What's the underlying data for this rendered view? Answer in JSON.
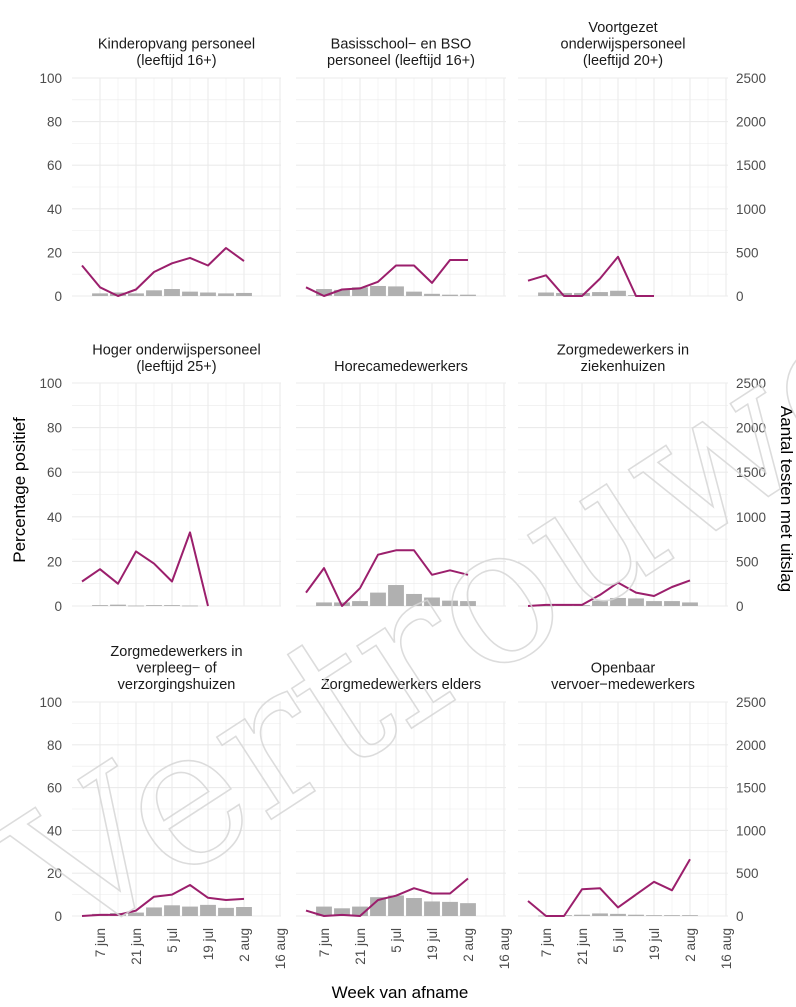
{
  "watermark": "Vertrouwelijk",
  "colors": {
    "line": "#9b1f6c",
    "bar": "#b0b0b0",
    "grid": "#ebebeb",
    "tick": "#4d4d4d"
  },
  "chart_data": {
    "type": "bar+line",
    "layout": "facet grid 3x3, shared axes",
    "xlabel": "Week van afname",
    "ylabel_left": "Percentage positief",
    "ylabel_right": "Aantal testen met uitslag",
    "x_ticks": [
      "7 jun",
      "21 jun",
      "5 jul",
      "19 jul",
      "2 aug",
      "16 aug"
    ],
    "ylim_left": [
      0,
      100
    ],
    "yticks_left": [
      "0",
      "20",
      "40",
      "60",
      "80",
      "100"
    ],
    "ylim_right": [
      0,
      2500
    ],
    "yticks_right": [
      "0",
      "500",
      "1000",
      "1500",
      "2000",
      "2500"
    ],
    "grid": true,
    "weeks": [
      "31 mei",
      "7 jun",
      "14 jun",
      "21 jun",
      "28 jun",
      "5 jul",
      "12 jul",
      "19 jul",
      "26 jul",
      "2 aug",
      "9 aug"
    ],
    "panels": [
      {
        "title": [
          "Kinderopvang personeel",
          "(leeftijd 16+)"
        ],
        "pct_positive": [
          14,
          4,
          0,
          3,
          11,
          15,
          17.5,
          14,
          22,
          16
        ],
        "tests": [
          0,
          30,
          40,
          30,
          65,
          80,
          50,
          40,
          30,
          35
        ]
      },
      {
        "title": [
          "Basisschool− en BSO",
          "personeel (leeftijd 16+)"
        ],
        "pct_positive": [
          4,
          0,
          3,
          3.5,
          6.5,
          14,
          14,
          6,
          16.5,
          16.5
        ],
        "tests": [
          0,
          80,
          70,
          100,
          115,
          110,
          50,
          25,
          15,
          15
        ]
      },
      {
        "title": [
          "Voortgezet",
          "onderwijspersoneel",
          "(leeftijd 20+)"
        ],
        "pct_positive": [
          7,
          9.5,
          0,
          0,
          8,
          18,
          0,
          0
        ],
        "tests": [
          0,
          40,
          35,
          35,
          45,
          60,
          10,
          0
        ]
      },
      {
        "title": [
          "Hoger onderwijspersoneel",
          "(leeftijd 25+)"
        ],
        "pct_positive": [
          11,
          16.5,
          10,
          24.5,
          19,
          11,
          33,
          0
        ],
        "tests": [
          0,
          10,
          15,
          5,
          10,
          10,
          5,
          0
        ]
      },
      {
        "title": [
          "Horecamedewerkers"
        ],
        "pct_positive": [
          6,
          17,
          0,
          8,
          23,
          25,
          25,
          14,
          16,
          14
        ],
        "tests": [
          0,
          40,
          40,
          55,
          150,
          235,
          135,
          95,
          60,
          55
        ]
      },
      {
        "title": [
          "Zorgmedewerkers in",
          "ziekenhuizen"
        ],
        "pct_positive": [
          0,
          0.5,
          0.5,
          0.5,
          5,
          10.5,
          6,
          4.5,
          8.5,
          11.5
        ],
        "tests": [
          0,
          5,
          10,
          10,
          60,
          90,
          85,
          55,
          55,
          40
        ]
      },
      {
        "title": [
          "Zorgmedewerkers in",
          "verpleeg− of",
          "verzorgingshuizen"
        ],
        "pct_positive": [
          0,
          0.5,
          0.5,
          2.5,
          9,
          10,
          14.5,
          8.5,
          7.5,
          8
        ],
        "tests": [
          0,
          25,
          35,
          40,
          100,
          125,
          110,
          130,
          95,
          105
        ]
      },
      {
        "title": [
          "Zorgmedewerkers elders"
        ],
        "pct_positive": [
          2.5,
          0,
          0.5,
          0,
          7.5,
          9.5,
          13,
          10.5,
          10.5,
          17.5
        ],
        "tests": [
          0,
          110,
          90,
          110,
          220,
          240,
          210,
          170,
          165,
          150
        ]
      },
      {
        "title": [
          "Openbaar",
          "vervoer−medewerkers"
        ],
        "pct_positive": [
          7,
          0,
          0,
          12.5,
          13,
          4,
          10,
          16,
          12,
          26.5
        ],
        "tests": [
          0,
          5,
          10,
          15,
          30,
          25,
          15,
          10,
          10,
          10
        ]
      }
    ]
  }
}
